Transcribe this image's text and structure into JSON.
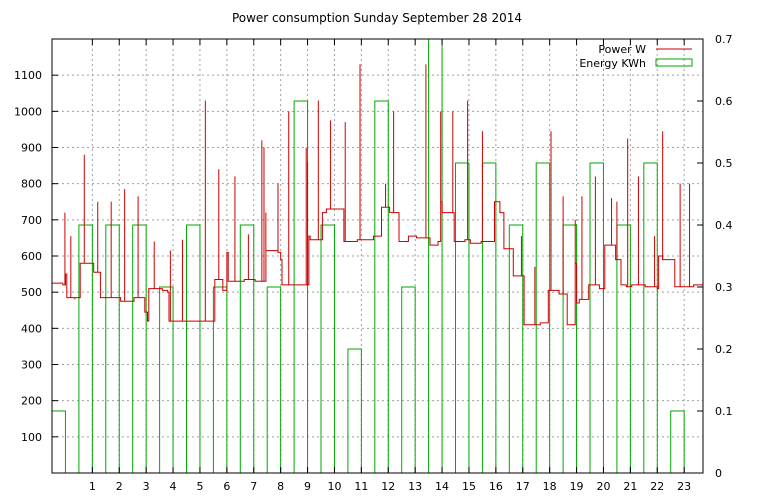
{
  "chart_data": {
    "type": "line",
    "title": "Power consumption Sunday September 28 2014",
    "xlabel": "",
    "ylabel": "",
    "xlim": [
      -0.5,
      23.7
    ],
    "ylim": [
      0,
      1200
    ],
    "y2lim": [
      0,
      0.7
    ],
    "x_ticks": [
      1,
      2,
      3,
      4,
      5,
      6,
      7,
      8,
      9,
      10,
      11,
      12,
      13,
      14,
      15,
      16,
      17,
      18,
      19,
      20,
      21,
      22,
      23
    ],
    "y_ticks": [
      100,
      200,
      300,
      400,
      500,
      600,
      700,
      800,
      900,
      1000,
      1100
    ],
    "y2_ticks": [
      0,
      0.1,
      0.2,
      0.3,
      0.4,
      0.5,
      0.6,
      0.7
    ],
    "grid": true,
    "legend_position": "top-right",
    "series": [
      {
        "name": "Power W",
        "color": "#cc0000",
        "axis": "left",
        "style": "step",
        "points": [
          [
            -0.5,
            525
          ],
          [
            -0.1,
            520
          ],
          [
            0.0,
            550
          ],
          [
            0.05,
            485
          ],
          [
            0.5,
            485
          ],
          [
            0.55,
            580
          ],
          [
            1.0,
            580
          ],
          [
            1.05,
            555
          ],
          [
            1.3,
            485
          ],
          [
            2.0,
            485
          ],
          [
            2.05,
            475
          ],
          [
            2.5,
            475
          ],
          [
            2.55,
            485
          ],
          [
            2.9,
            485
          ],
          [
            2.95,
            445
          ],
          [
            3.05,
            420
          ],
          [
            3.1,
            510
          ],
          [
            3.6,
            505
          ],
          [
            3.8,
            500
          ],
          [
            3.85,
            420
          ],
          [
            4.5,
            420
          ],
          [
            5.0,
            420
          ],
          [
            5.05,
            420
          ],
          [
            5.5,
            420
          ],
          [
            5.55,
            535
          ],
          [
            5.8,
            535
          ],
          [
            5.85,
            505
          ],
          [
            6.0,
            610
          ],
          [
            6.05,
            530
          ],
          [
            6.6,
            530
          ],
          [
            6.65,
            535
          ],
          [
            7.0,
            535
          ],
          [
            7.05,
            530
          ],
          [
            7.4,
            530
          ],
          [
            7.45,
            615
          ],
          [
            7.9,
            610
          ],
          [
            8.0,
            590
          ],
          [
            8.05,
            520
          ],
          [
            8.6,
            520
          ],
          [
            9.0,
            520
          ],
          [
            9.05,
            655
          ],
          [
            9.1,
            645
          ],
          [
            9.5,
            645
          ],
          [
            9.55,
            720
          ],
          [
            9.7,
            730
          ],
          [
            10.3,
            730
          ],
          [
            10.35,
            640
          ],
          [
            10.8,
            640
          ],
          [
            10.85,
            645
          ],
          [
            11.4,
            645
          ],
          [
            11.45,
            655
          ],
          [
            11.7,
            655
          ],
          [
            11.75,
            735
          ],
          [
            12.0,
            735
          ],
          [
            12.05,
            720
          ],
          [
            12.35,
            720
          ],
          [
            12.4,
            640
          ],
          [
            12.7,
            640
          ],
          [
            12.75,
            655
          ],
          [
            13.0,
            655
          ],
          [
            13.05,
            650
          ],
          [
            13.5,
            650
          ],
          [
            13.55,
            630
          ],
          [
            13.8,
            630
          ],
          [
            13.85,
            640
          ],
          [
            13.95,
            750
          ],
          [
            14.0,
            720
          ],
          [
            14.4,
            720
          ],
          [
            14.45,
            640
          ],
          [
            14.8,
            640
          ],
          [
            14.85,
            645
          ],
          [
            15.0,
            645
          ],
          [
            15.05,
            635
          ],
          [
            15.4,
            635
          ],
          [
            15.45,
            640
          ],
          [
            15.9,
            640
          ],
          [
            15.95,
            750
          ],
          [
            16.1,
            750
          ],
          [
            16.15,
            720
          ],
          [
            16.25,
            720
          ],
          [
            16.3,
            620
          ],
          [
            16.6,
            620
          ],
          [
            16.65,
            545
          ],
          [
            17.0,
            545
          ],
          [
            17.05,
            410
          ],
          [
            17.6,
            410
          ],
          [
            17.65,
            415
          ],
          [
            17.9,
            415
          ],
          [
            17.95,
            505
          ],
          [
            18.3,
            505
          ],
          [
            18.35,
            495
          ],
          [
            18.6,
            495
          ],
          [
            18.65,
            410
          ],
          [
            18.9,
            410
          ],
          [
            18.95,
            580
          ],
          [
            19.0,
            470
          ],
          [
            19.1,
            480
          ],
          [
            19.4,
            480
          ],
          [
            19.45,
            520
          ],
          [
            19.8,
            520
          ],
          [
            19.85,
            510
          ],
          [
            20.0,
            510
          ],
          [
            20.05,
            630
          ],
          [
            20.4,
            630
          ],
          [
            20.45,
            590
          ],
          [
            20.6,
            590
          ],
          [
            20.65,
            520
          ],
          [
            20.8,
            520
          ],
          [
            20.85,
            515
          ],
          [
            21.0,
            515
          ],
          [
            21.05,
            520
          ],
          [
            21.5,
            520
          ],
          [
            21.55,
            515
          ],
          [
            21.9,
            515
          ],
          [
            21.95,
            515
          ],
          [
            22.0,
            510
          ],
          [
            22.05,
            600
          ],
          [
            22.2,
            590
          ],
          [
            22.6,
            590
          ],
          [
            22.65,
            515
          ],
          [
            23.1,
            515
          ],
          [
            23.3,
            515
          ],
          [
            23.35,
            520
          ],
          [
            23.7,
            520
          ]
        ],
        "spikes": [
          [
            -0.02,
            720
          ],
          [
            0.2,
            655
          ],
          [
            0.35,
            480
          ],
          [
            0.7,
            880
          ],
          [
            1.2,
            750
          ],
          [
            1.7,
            750
          ],
          [
            2.2,
            785
          ],
          [
            2.7,
            765
          ],
          [
            3.3,
            640
          ],
          [
            3.9,
            615
          ],
          [
            4.35,
            645
          ],
          [
            5.2,
            1030
          ],
          [
            5.7,
            840
          ],
          [
            6.3,
            820
          ],
          [
            6.8,
            660
          ],
          [
            7.3,
            920
          ],
          [
            7.38,
            900
          ],
          [
            7.45,
            720
          ],
          [
            7.9,
            800
          ],
          [
            8.3,
            1000
          ],
          [
            8.95,
            900
          ],
          [
            9.0,
            860
          ],
          [
            9.4,
            1030
          ],
          [
            9.85,
            975
          ],
          [
            10.4,
            970
          ],
          [
            10.95,
            1130
          ],
          [
            11.9,
            800
          ],
          [
            12.2,
            1000
          ],
          [
            13.4,
            1130
          ],
          [
            13.95,
            1000
          ],
          [
            14.4,
            1000
          ],
          [
            14.95,
            1030
          ],
          [
            15.5,
            945
          ],
          [
            16.95,
            655
          ],
          [
            17.45,
            570
          ],
          [
            18.05,
            945
          ],
          [
            18.5,
            765
          ],
          [
            18.95,
            700
          ],
          [
            19.2,
            765
          ],
          [
            19.7,
            820
          ],
          [
            20.3,
            760
          ],
          [
            20.5,
            750
          ],
          [
            20.9,
            925
          ],
          [
            21.3,
            820
          ],
          [
            21.9,
            655
          ],
          [
            22.2,
            945
          ],
          [
            22.85,
            800
          ],
          [
            23.2,
            800
          ]
        ]
      },
      {
        "name": "Energy KWh",
        "color": "#00aa00",
        "axis": "right",
        "style": "bar",
        "bar_width": 0.5,
        "x": [
          -0.5,
          0.5,
          1.5,
          2.5,
          3.5,
          4.5,
          5.5,
          6.5,
          7.5,
          8.5,
          9.5,
          10.5,
          11.5,
          12.5,
          13.5,
          14.5,
          15.5,
          16.5,
          17.5,
          18.5,
          19.5,
          20.5,
          21.5,
          22.5
        ],
        "values": [
          0.1,
          0.4,
          0.4,
          0.4,
          0.3,
          0.4,
          0.3,
          0.4,
          0.3,
          0.6,
          0.4,
          0.2,
          0.6,
          0.3,
          0.7,
          0.5,
          0.5,
          0.4,
          0.5,
          0.4,
          0.5,
          0.4,
          0.5,
          0.1
        ]
      }
    ]
  }
}
